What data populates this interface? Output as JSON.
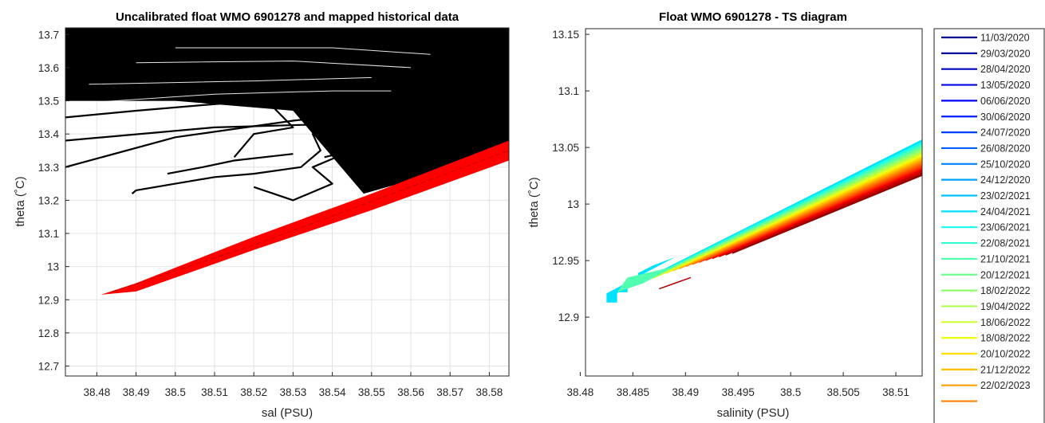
{
  "chart_data": [
    {
      "type": "line",
      "title": "Uncalibrated float WMO 6901278 and mapped historical data",
      "xlabel": "sal (PSU)",
      "ylabel": "theta (˚C)",
      "xlim": [
        38.472,
        38.585
      ],
      "ylim": [
        12.67,
        13.72
      ],
      "x_ticks": [
        "38.48",
        "38.49",
        "38.5",
        "38.51",
        "38.52",
        "38.53",
        "38.54",
        "38.55",
        "38.56",
        "38.57",
        "38.58"
      ],
      "y_ticks": [
        "12.7",
        "12.8",
        "12.9",
        "13",
        "13.1",
        "13.2",
        "13.3",
        "13.4",
        "13.5",
        "13.6",
        "13.7"
      ],
      "grid": true,
      "series": [
        {
          "color": "#000000",
          "band_lower": [
            [
              38.548,
              13.22
            ],
            [
              38.56,
              13.26
            ],
            [
              38.57,
              13.3
            ],
            [
              38.58,
              13.34
            ],
            [
              38.585,
              13.36
            ]
          ],
          "band_upper": [
            [
              38.472,
              13.72
            ],
            [
              38.585,
              13.72
            ]
          ],
          "traces": [
            [
              [
                38.472,
                13.3
              ],
              [
                38.5,
                13.39
              ],
              [
                38.53,
                13.44
              ],
              [
                38.56,
                13.48
              ],
              [
                38.575,
                13.5
              ]
            ],
            [
              [
                38.472,
                13.38
              ],
              [
                38.51,
                13.42
              ],
              [
                38.54,
                13.43
              ],
              [
                38.565,
                13.44
              ]
            ],
            [
              [
                38.472,
                13.45
              ],
              [
                38.49,
                13.47
              ],
              [
                38.52,
                13.5
              ],
              [
                38.55,
                13.52
              ]
            ],
            [
              [
                38.489,
                13.22
              ],
              [
                38.49,
                13.23
              ],
              [
                38.5,
                13.25
              ],
              [
                38.51,
                13.27
              ],
              [
                38.52,
                13.28
              ],
              [
                38.532,
                13.3
              ],
              [
                38.537,
                13.35
              ],
              [
                38.535,
                13.4
              ],
              [
                38.54,
                13.45
              ],
              [
                38.545,
                13.5
              ]
            ],
            [
              [
                38.498,
                13.28
              ],
              [
                38.507,
                13.3
              ],
              [
                38.515,
                13.32
              ],
              [
                38.53,
                13.34
              ]
            ],
            [
              [
                38.52,
                13.24
              ],
              [
                38.525,
                13.22
              ],
              [
                38.53,
                13.2
              ],
              [
                38.54,
                13.25
              ],
              [
                38.535,
                13.3
              ],
              [
                38.545,
                13.35
              ]
            ],
            [
              [
                38.515,
                13.33
              ],
              [
                38.52,
                13.4
              ],
              [
                38.53,
                13.42
              ],
              [
                38.525,
                13.48
              ],
              [
                38.535,
                13.5
              ]
            ],
            [
              [
                38.538,
                13.33
              ],
              [
                38.545,
                13.35
              ],
              [
                38.55,
                13.33
              ],
              [
                38.555,
                13.38
              ],
              [
                38.56,
                13.36
              ]
            ]
          ]
        },
        {
          "color": "#ff0000",
          "band_lower": [
            [
              38.481,
              12.915
            ],
            [
              38.49,
              12.925
            ],
            [
              38.52,
              13.05
            ],
            [
              38.55,
              13.17
            ],
            [
              38.585,
              13.32
            ]
          ],
          "band_upper": [
            [
              38.481,
              12.915
            ],
            [
              38.49,
              12.95
            ],
            [
              38.52,
              13.09
            ],
            [
              38.55,
              13.22
            ],
            [
              38.585,
              13.38
            ]
          ]
        }
      ]
    },
    {
      "type": "line",
      "title": "Float WMO 6901278 - TS diagram",
      "xlabel": "salinity (PSU)",
      "ylabel": "theta (˚C)",
      "xlim": [
        38.4805,
        38.5125
      ],
      "ylim": [
        12.848,
        13.155
      ],
      "x_ticks": [
        "38.48",
        "38.485",
        "38.49",
        "38.495",
        "38.5",
        "38.505",
        "38.51"
      ],
      "y_ticks": [
        "12.9",
        "12.95",
        "13",
        "13.05",
        "13.1",
        "13.15"
      ],
      "grid": false,
      "band": {
        "start": [
          38.4825,
          12.917
        ],
        "end_top": [
          38.5125,
          13.057
        ],
        "end_bottom": [
          38.5125,
          13.025
        ]
      },
      "series": [
        {
          "name": "11/03/2020",
          "color": "#00008f"
        },
        {
          "name": "29/03/2020",
          "color": "#00009f"
        },
        {
          "name": "28/04/2020",
          "color": "#0000bf"
        },
        {
          "name": "13/05/2020",
          "color": "#0000df"
        },
        {
          "name": "06/06/2020",
          "color": "#0000ff"
        },
        {
          "name": "30/06/2020",
          "color": "#0020ff"
        },
        {
          "name": "24/07/2020",
          "color": "#0040ff"
        },
        {
          "name": "26/08/2020",
          "color": "#0060ff"
        },
        {
          "name": "25/10/2020",
          "color": "#0080ff"
        },
        {
          "name": "24/12/2020",
          "color": "#00a0ff"
        },
        {
          "name": "23/02/2021",
          "color": "#00c0ff"
        },
        {
          "name": "24/04/2021",
          "color": "#00e0ff"
        },
        {
          "name": "23/06/2021",
          "color": "#10ffef"
        },
        {
          "name": "22/08/2021",
          "color": "#30ffcf"
        },
        {
          "name": "21/10/2021",
          "color": "#50ffaf"
        },
        {
          "name": "20/12/2021",
          "color": "#70ff8f"
        },
        {
          "name": "18/02/2022",
          "color": "#8fff70"
        },
        {
          "name": "19/04/2022",
          "color": "#afff50"
        },
        {
          "name": "18/06/2022",
          "color": "#cfff30"
        },
        {
          "name": "18/08/2022",
          "color": "#efff10"
        },
        {
          "name": "20/10/2022",
          "color": "#ffe000"
        },
        {
          "name": "21/12/2022",
          "color": "#ffc000"
        },
        {
          "name": "22/02/2023",
          "color": "#ffa000"
        },
        {
          "name": "",
          "color": "#ff8000"
        }
      ],
      "legend_placement": "right, outside plot"
    }
  ]
}
